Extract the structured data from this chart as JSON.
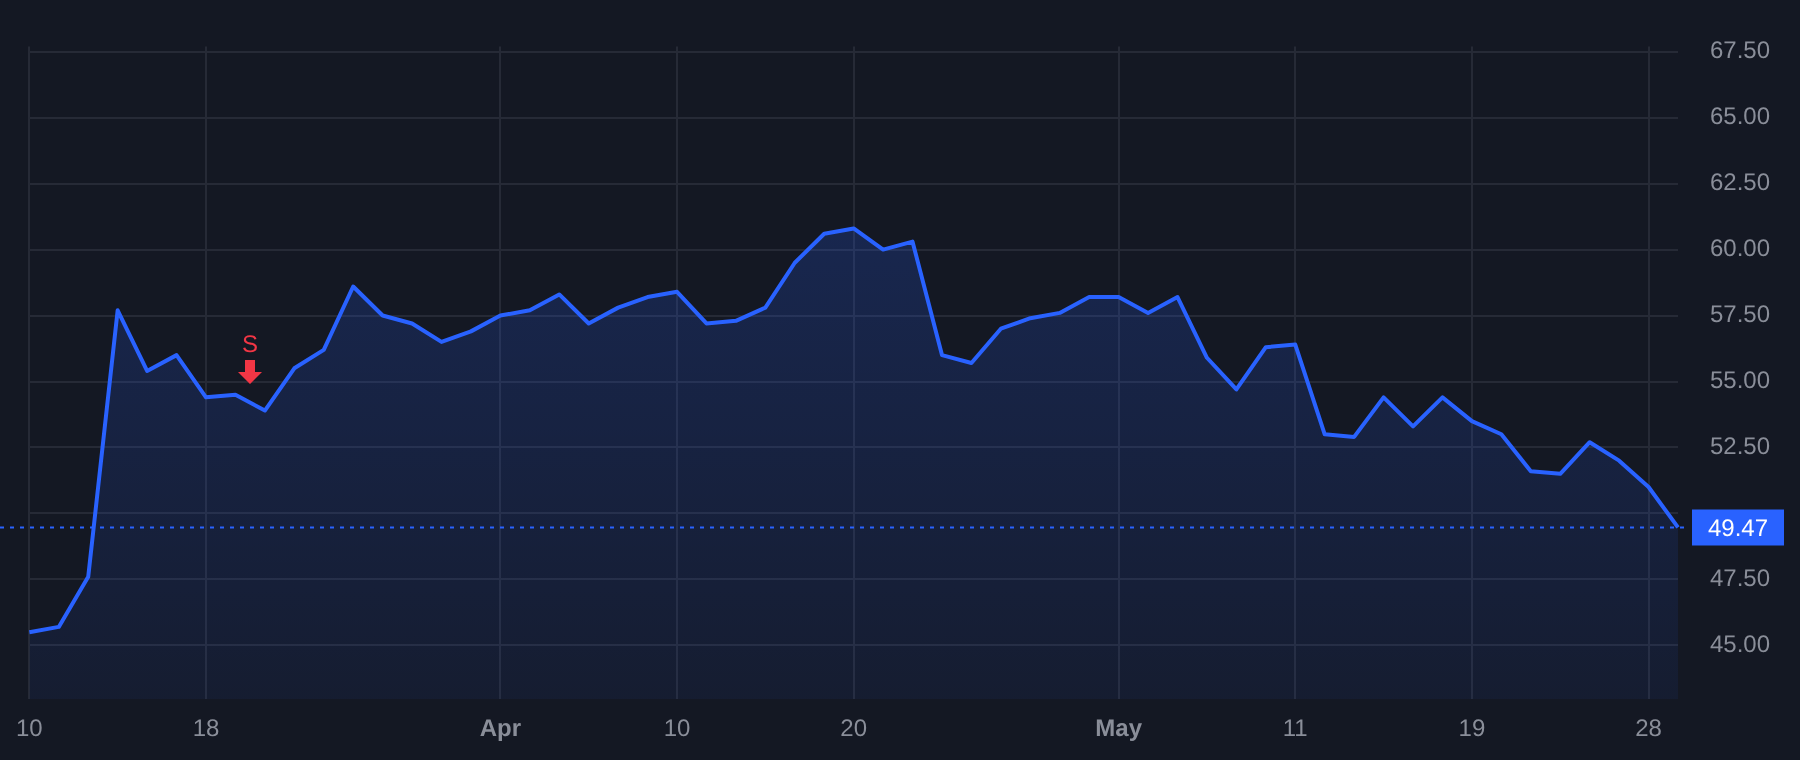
{
  "chart_data": {
    "type": "area",
    "categories": [
      "10",
      null,
      null,
      null,
      null,
      null,
      "18",
      null,
      null,
      null,
      null,
      null,
      null,
      null,
      null,
      null,
      "Apr",
      null,
      null,
      null,
      null,
      null,
      "10",
      null,
      null,
      null,
      null,
      null,
      "20",
      null,
      null,
      null,
      null,
      null,
      null,
      null,
      null,
      "May",
      null,
      null,
      null,
      null,
      null,
      "11",
      null,
      null,
      null,
      null,
      null,
      "19",
      null,
      null,
      null,
      null,
      null,
      "28",
      null
    ],
    "series": [
      {
        "color": "#2962ff",
        "values": [
          45.5,
          45.7,
          47.6,
          57.7,
          55.4,
          56.0,
          54.4,
          54.5,
          53.9,
          55.5,
          56.2,
          58.6,
          57.5,
          57.2,
          56.5,
          56.9,
          57.5,
          57.7,
          58.3,
          57.2,
          57.8,
          58.2,
          58.4,
          57.2,
          57.3,
          57.8,
          59.5,
          60.6,
          60.8,
          60.0,
          60.3,
          56.0,
          55.7,
          57.0,
          57.4,
          57.6,
          58.2,
          58.2,
          57.6,
          58.2,
          55.9,
          54.7,
          56.3,
          56.4,
          53.0,
          52.9,
          54.4,
          53.3,
          54.4,
          53.5,
          53.0,
          51.6,
          51.5,
          52.7,
          52.0,
          51.0,
          49.47
        ]
      }
    ],
    "ylim": [
      42.96,
      67.7
    ],
    "yticks": [
      {
        "value": 45,
        "label": "45.00"
      },
      {
        "value": 47.5,
        "label": "47.50"
      },
      {
        "value": 50,
        "label": null
      },
      {
        "value": 52.5,
        "label": "52.50"
      },
      {
        "value": 55,
        "label": "55.00"
      },
      {
        "value": 57.5,
        "label": "57.50"
      },
      {
        "value": 60,
        "label": "60.00"
      },
      {
        "value": 62.5,
        "label": "62.50"
      },
      {
        "value": 65,
        "label": "65.00"
      },
      {
        "value": 67.5,
        "label": "67.50"
      }
    ],
    "grid": true,
    "legend": false,
    "marker": "none",
    "ref_lines": [
      {
        "axis": "y",
        "value": 49.47,
        "label": "49.47",
        "color": "#2962ff",
        "line_style": "dotted"
      }
    ],
    "annotations": [
      "S"
    ]
  }
}
